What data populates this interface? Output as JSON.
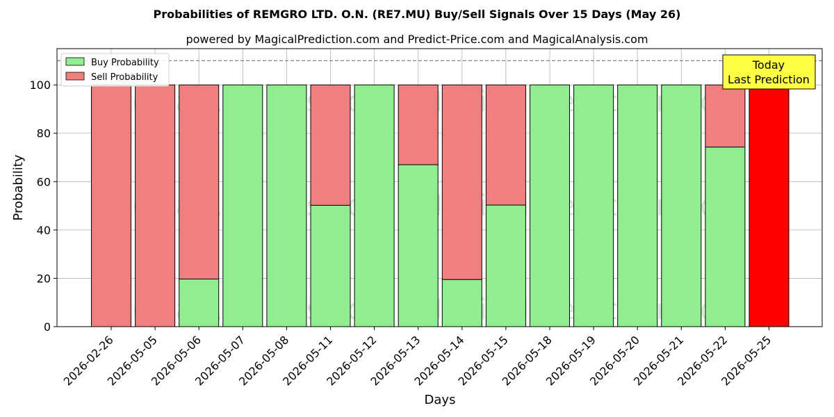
{
  "chart_data": {
    "type": "bar",
    "stacked": true,
    "title": "Probabilities of REMGRO LTD.  O.N. (RE7.MU) Buy/Sell Signals Over 15 Days (May 26)",
    "subtitle": "powered by MagicalPrediction.com and Predict-Price.com and MagicalAnalysis.com",
    "xlabel": "Days",
    "ylabel": "Probability",
    "ylim": [
      0,
      115
    ],
    "yticks": [
      0,
      20,
      40,
      60,
      80,
      100
    ],
    "threshold_line": 110,
    "grid": true,
    "legend_position": "top-left",
    "categories": [
      "2026-02-26",
      "2026-05-05",
      "2026-05-06",
      "2026-05-07",
      "2026-05-08",
      "2026-05-11",
      "2026-05-12",
      "2026-05-13",
      "2026-05-14",
      "2026-05-15",
      "2026-05-18",
      "2026-05-19",
      "2026-05-20",
      "2026-05-21",
      "2026-05-22",
      "2026-05-25"
    ],
    "series": [
      {
        "name": "Buy Probability",
        "color": "#90ee90",
        "values": [
          0,
          0,
          19.7,
          100,
          100,
          50.2,
          100,
          67,
          19.5,
          50.3,
          100,
          100,
          100,
          100,
          74.3,
          0
        ]
      },
      {
        "name": "Sell Probability",
        "color": "#f08080",
        "values": [
          100,
          100,
          80.3,
          0,
          0,
          49.8,
          0,
          33,
          80.5,
          49.7,
          0,
          0,
          0,
          0,
          25.7,
          100
        ]
      }
    ],
    "highlight": {
      "index": 15,
      "color": "#ff0000"
    },
    "annotation": {
      "line1": "Today",
      "line2": "Last Prediction",
      "color": "#ffff44"
    },
    "watermarks": [
      "MagicalAnalysis.com",
      "MagicalPrediction.com"
    ]
  }
}
